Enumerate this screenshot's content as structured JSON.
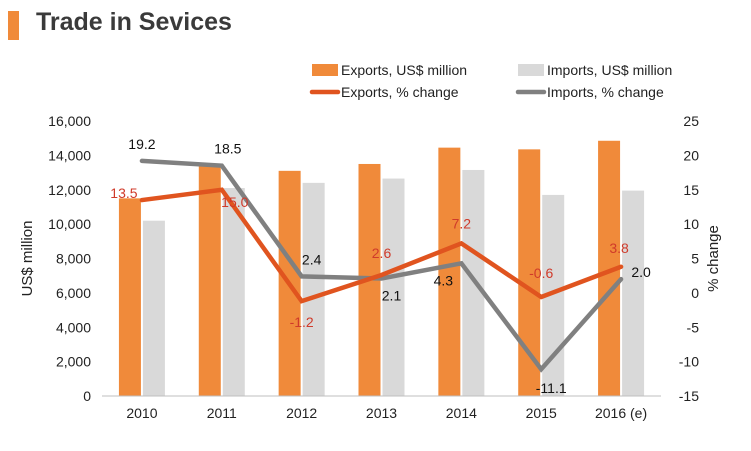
{
  "header": {
    "title": "Trade in Sevices"
  },
  "chart_data": {
    "type": "bar",
    "title": "Trade in Sevices",
    "categories": [
      "2010",
      "2011",
      "2012",
      "2013",
      "2014",
      "2015",
      "2016 (e)"
    ],
    "ylabel": "US$ million",
    "y2label": "% change",
    "ylim": [
      0,
      16000
    ],
    "y2lim": [
      -15,
      25
    ],
    "yticks": [
      "0",
      "2,000",
      "4,000",
      "6,000",
      "8,000",
      "10,000",
      "12,000",
      "14,000",
      "16,000"
    ],
    "y2ticks": [
      "-15",
      "-10",
      "-5",
      "0",
      "5",
      "10",
      "15",
      "20",
      "25"
    ],
    "legend_position": "top-right",
    "grid": false,
    "series": [
      {
        "name": "Exports, US$ million",
        "kind": "bar",
        "color": "#f08a3a",
        "values": [
          11500,
          13400,
          13100,
          13500,
          14450,
          14350,
          14850
        ]
      },
      {
        "name": "Imports, US$ million",
        "kind": "bar",
        "color": "#d9d9d9",
        "values": [
          10200,
          12100,
          12400,
          12650,
          13150,
          11700,
          11950
        ]
      },
      {
        "name": "Exports, % change",
        "kind": "line",
        "axis": "right",
        "color": "#e0541f",
        "label_color": "#d03a2a",
        "values": [
          13.5,
          15.0,
          -1.2,
          2.6,
          7.2,
          -0.6,
          3.8
        ],
        "labels": [
          "13.5",
          "15.0",
          "-1.2",
          "2.6",
          "7.2",
          "-0.6",
          "3.8"
        ]
      },
      {
        "name": "Imports, % change",
        "kind": "line",
        "axis": "right",
        "color": "#808080",
        "label_color": "#111111",
        "values": [
          19.2,
          18.5,
          2.4,
          2.1,
          4.3,
          -11.1,
          2.0
        ],
        "labels": [
          "19.2",
          "18.5",
          "2.4",
          "2.1",
          "4.3",
          "-11.1",
          "2.0"
        ]
      }
    ]
  }
}
